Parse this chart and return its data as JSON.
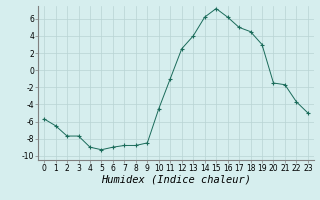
{
  "x": [
    0,
    1,
    2,
    3,
    4,
    5,
    6,
    7,
    8,
    9,
    10,
    11,
    12,
    13,
    14,
    15,
    16,
    17,
    18,
    19,
    20,
    21,
    22,
    23
  ],
  "y": [
    -5.7,
    -6.5,
    -7.7,
    -7.7,
    -9.0,
    -9.3,
    -9.0,
    -8.8,
    -8.8,
    -8.5,
    -4.5,
    -1.0,
    2.5,
    4.0,
    6.2,
    7.2,
    6.2,
    5.0,
    4.5,
    3.0,
    -1.5,
    -1.7,
    -3.7,
    -5.0
  ],
  "line_color": "#1a6b5a",
  "marker": "+",
  "marker_size": 3,
  "bg_color": "#d6eeee",
  "grid_color": "#b8d4d4",
  "xlabel": "Humidex (Indice chaleur)",
  "xlabel_style": "italic",
  "xlim": [
    -0.5,
    23.5
  ],
  "ylim": [
    -10.5,
    7.5
  ],
  "yticks": [
    -10,
    -8,
    -6,
    -4,
    -2,
    0,
    2,
    4,
    6
  ],
  "xticks": [
    0,
    1,
    2,
    3,
    4,
    5,
    6,
    7,
    8,
    9,
    10,
    11,
    12,
    13,
    14,
    15,
    16,
    17,
    18,
    19,
    20,
    21,
    22,
    23
  ],
  "tick_fontsize": 5.5,
  "xlabel_fontsize": 7.5
}
